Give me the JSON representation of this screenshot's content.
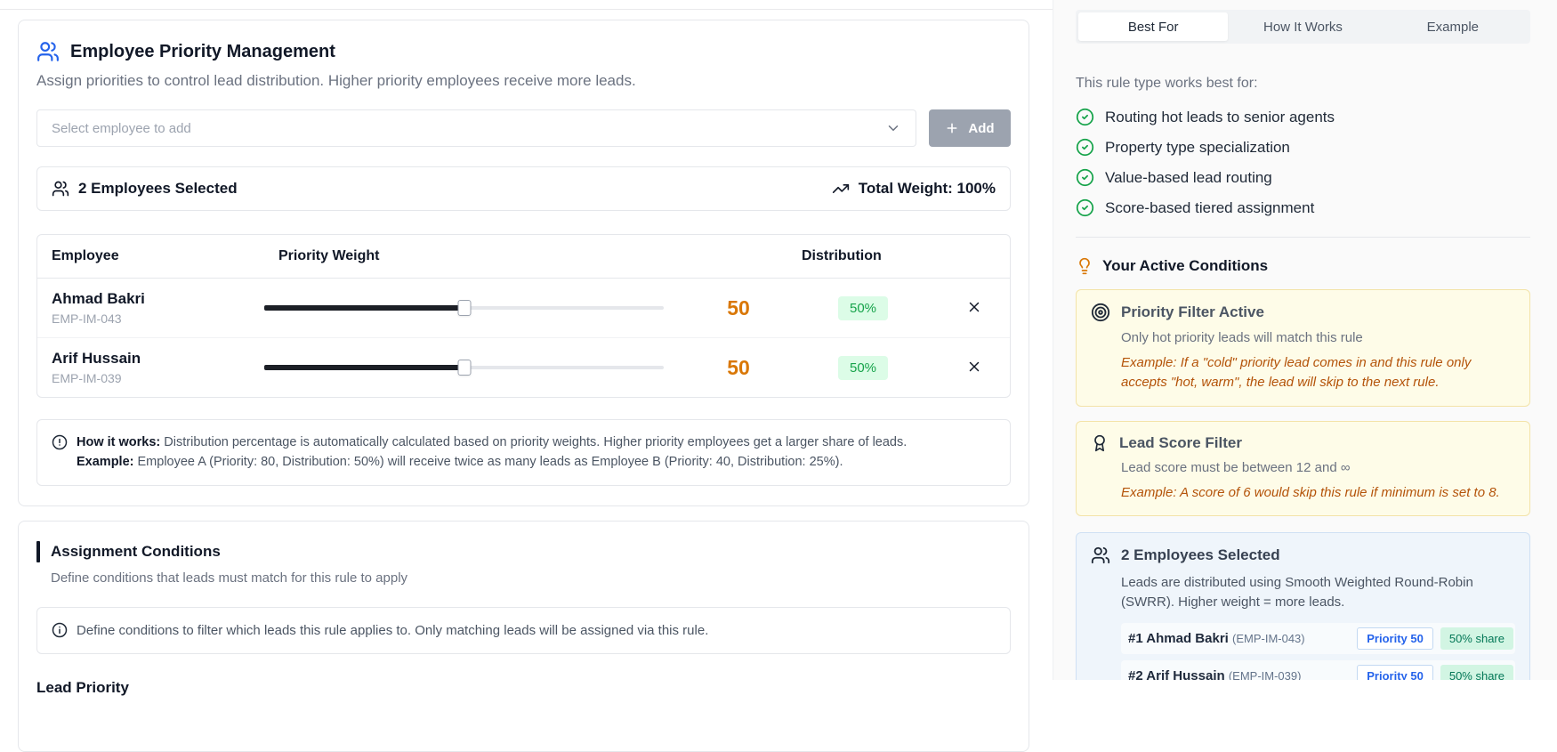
{
  "main": {
    "priority_card": {
      "title": "Employee Priority Management",
      "subtitle": "Assign priorities to control lead distribution. Higher priority employees receive more leads.",
      "select_placeholder": "Select employee to add",
      "add_button_label": "Add",
      "selected_summary": "2 Employees Selected",
      "total_weight_label": "Total Weight: 100%",
      "table": {
        "headers": {
          "employee": "Employee",
          "weight": "Priority Weight",
          "distribution": "Distribution"
        },
        "rows": [
          {
            "name": "Ahmad Bakri",
            "id": "EMP-IM-043",
            "weight": "50",
            "distribution": "50%",
            "slider_percent": 50
          },
          {
            "name": "Arif Hussain",
            "id": "EMP-IM-039",
            "weight": "50",
            "distribution": "50%",
            "slider_percent": 50
          }
        ]
      },
      "how_it_works": {
        "label": "How it works:",
        "text": " Distribution percentage is automatically calculated based on priority weights. Higher priority employees get a larger share of leads.",
        "example_label": "Example:",
        "example_text": " Employee A (Priority: 80, Distribution: 50%) will receive twice as many leads as Employee B (Priority: 40, Distribution: 25%)."
      }
    },
    "conditions_card": {
      "title": "Assignment Conditions",
      "subtitle": "Define conditions that leads must match for this rule to apply",
      "info_text": "Define conditions to filter which leads this rule applies to. Only matching leads will be assigned via this rule.",
      "lead_priority_label": "Lead Priority"
    }
  },
  "sidebar": {
    "tabs": [
      {
        "label": "Best For",
        "active": true
      },
      {
        "label": "How It Works",
        "active": false
      },
      {
        "label": "Example",
        "active": false
      }
    ],
    "best_for": {
      "heading": "This rule type works best for:",
      "items": [
        "Routing hot leads to senior agents",
        "Property type specialization",
        "Value-based lead routing",
        "Score-based tiered assignment"
      ]
    },
    "active_conditions": {
      "heading": "Your Active Conditions",
      "cards": [
        {
          "icon": "target-icon",
          "title": "Priority Filter Active",
          "description": "Only hot priority leads will match this rule",
          "example": "Example: If a \"cold\" priority lead comes in and this rule only accepts \"hot, warm\", the lead will skip to the next rule."
        },
        {
          "icon": "award-icon",
          "title": "Lead Score Filter",
          "description": "Lead score must be between 12 and ∞",
          "example": "Example: A score of 6 would skip this rule if minimum is set to 8."
        }
      ]
    },
    "employees_box": {
      "title": "2 Employees Selected",
      "description": "Leads are distributed using Smooth Weighted Round-Robin (SWRR). Higher weight = more leads.",
      "rows": [
        {
          "rank_name": "#1 Ahmad Bakri",
          "id": "(EMP-IM-043)",
          "priority": "Priority 50",
          "share": "50% share"
        },
        {
          "rank_name": "#2 Arif Hussain",
          "id": "(EMP-IM-039)",
          "priority": "Priority 50",
          "share": "50% share"
        }
      ]
    }
  },
  "colors": {
    "accent_blue": "#2563eb",
    "success_green": "#16a34a",
    "weight_orange": "#d97706",
    "warning_box_bg": "#fefce8",
    "warning_box_border": "#f3e3a8",
    "info_box_bg": "#eff5fb",
    "add_button_bg": "#9ca3af"
  },
  "icons": [
    "users-icon",
    "chevron-down-icon",
    "plus-icon",
    "trending-up-icon",
    "alert-circle-icon",
    "info-icon",
    "close-icon",
    "check-circle-icon",
    "lightbulb-icon",
    "target-icon",
    "award-icon"
  ]
}
